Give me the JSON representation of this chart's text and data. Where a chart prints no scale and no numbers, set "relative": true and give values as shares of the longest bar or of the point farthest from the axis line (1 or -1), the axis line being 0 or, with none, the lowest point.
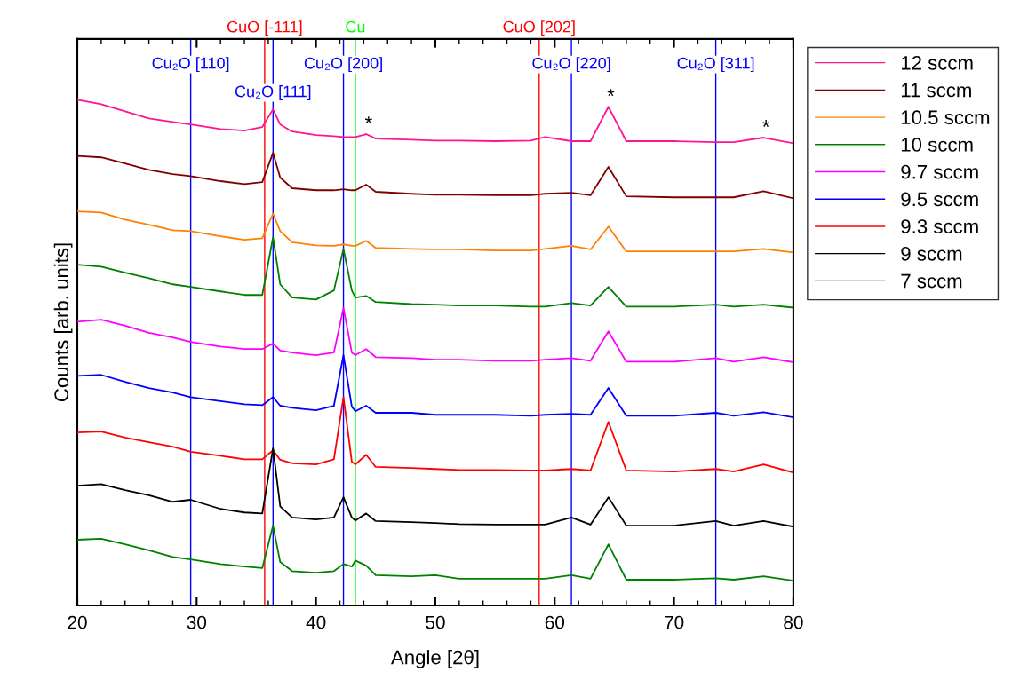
{
  "chart_data": {
    "type": "line",
    "relative": true,
    "xlabel": "Angle [2θ]",
    "ylabel": "Counts [arb. units]",
    "x": [
      20,
      22,
      24,
      26,
      28,
      29.5,
      32,
      34,
      35.5,
      36.4,
      37,
      38,
      40,
      41.5,
      42.3,
      43,
      43.3,
      44.2,
      45,
      48,
      50,
      52,
      55,
      58,
      59.2,
      61.4,
      63,
      64.5,
      66,
      70,
      73.5,
      75,
      77.5,
      80
    ],
    "xlim": [
      20,
      80
    ],
    "xticks": [
      20,
      30,
      40,
      50,
      60,
      70,
      80
    ],
    "grid": false,
    "legend": "right",
    "marker": "none",
    "line_style": "solid",
    "series": [
      {
        "name": "12 sccm",
        "color": "#ff1493",
        "values": [
          1.0,
          0.991,
          0.977,
          0.963,
          0.956,
          0.951,
          0.942,
          0.939,
          0.946,
          0.981,
          0.951,
          0.937,
          0.93,
          0.928,
          0.926,
          0.926,
          0.926,
          0.932,
          0.923,
          0.921,
          0.919,
          0.919,
          0.918,
          0.919,
          0.926,
          0.918,
          0.918,
          0.986,
          0.918,
          0.918,
          0.916,
          0.916,
          0.925,
          0.914
        ]
      },
      {
        "name": "11 sccm",
        "color": "#800000",
        "values": [
          0.889,
          0.886,
          0.874,
          0.861,
          0.853,
          0.849,
          0.839,
          0.833,
          0.837,
          0.895,
          0.846,
          0.825,
          0.821,
          0.821,
          0.823,
          0.821,
          0.821,
          0.832,
          0.818,
          0.814,
          0.812,
          0.812,
          0.811,
          0.811,
          0.814,
          0.816,
          0.811,
          0.867,
          0.809,
          0.807,
          0.807,
          0.807,
          0.819,
          0.805
        ]
      },
      {
        "name": "10.5 sccm",
        "color": "#ff8000",
        "values": [
          0.779,
          0.777,
          0.763,
          0.753,
          0.742,
          0.74,
          0.73,
          0.723,
          0.726,
          0.775,
          0.74,
          0.718,
          0.712,
          0.711,
          0.714,
          0.711,
          0.711,
          0.721,
          0.707,
          0.705,
          0.704,
          0.704,
          0.702,
          0.702,
          0.705,
          0.711,
          0.704,
          0.749,
          0.7,
          0.7,
          0.7,
          0.7,
          0.705,
          0.698
        ]
      },
      {
        "name": "10 sccm",
        "color": "#008000",
        "values": [
          0.674,
          0.67,
          0.658,
          0.647,
          0.635,
          0.63,
          0.621,
          0.614,
          0.614,
          0.728,
          0.635,
          0.609,
          0.605,
          0.623,
          0.705,
          0.623,
          0.609,
          0.612,
          0.6,
          0.596,
          0.595,
          0.593,
          0.593,
          0.591,
          0.591,
          0.598,
          0.593,
          0.63,
          0.591,
          0.591,
          0.595,
          0.591,
          0.595,
          0.589
        ]
      },
      {
        "name": "9.7 sccm",
        "color": "#ff00ff",
        "values": [
          0.561,
          0.565,
          0.553,
          0.539,
          0.53,
          0.521,
          0.512,
          0.507,
          0.507,
          0.518,
          0.504,
          0.5,
          0.495,
          0.5,
          0.588,
          0.5,
          0.495,
          0.507,
          0.491,
          0.489,
          0.486,
          0.486,
          0.484,
          0.484,
          0.486,
          0.489,
          0.484,
          0.542,
          0.482,
          0.482,
          0.489,
          0.482,
          0.491,
          0.481
        ]
      },
      {
        "name": "9.5 sccm",
        "color": "#0000ff",
        "values": [
          0.454,
          0.456,
          0.442,
          0.43,
          0.421,
          0.412,
          0.404,
          0.398,
          0.396,
          0.412,
          0.395,
          0.391,
          0.386,
          0.395,
          0.495,
          0.393,
          0.384,
          0.395,
          0.381,
          0.381,
          0.377,
          0.377,
          0.377,
          0.375,
          0.377,
          0.379,
          0.377,
          0.43,
          0.375,
          0.375,
          0.381,
          0.375,
          0.382,
          0.372
        ]
      },
      {
        "name": "9.3 sccm",
        "color": "#ff0000",
        "values": [
          0.342,
          0.344,
          0.332,
          0.323,
          0.314,
          0.304,
          0.296,
          0.289,
          0.289,
          0.307,
          0.288,
          0.281,
          0.279,
          0.289,
          0.412,
          0.284,
          0.279,
          0.298,
          0.274,
          0.272,
          0.27,
          0.268,
          0.268,
          0.267,
          0.267,
          0.27,
          0.267,
          0.363,
          0.267,
          0.265,
          0.27,
          0.265,
          0.279,
          0.263
        ]
      },
      {
        "name": "9 sccm",
        "color": "#000000",
        "values": [
          0.237,
          0.24,
          0.228,
          0.218,
          0.205,
          0.209,
          0.191,
          0.184,
          0.182,
          0.311,
          0.196,
          0.174,
          0.17,
          0.174,
          0.214,
          0.174,
          0.168,
          0.182,
          0.167,
          0.165,
          0.163,
          0.161,
          0.16,
          0.16,
          0.16,
          0.174,
          0.16,
          0.214,
          0.158,
          0.158,
          0.167,
          0.158,
          0.167,
          0.156
        ]
      },
      {
        "name": "7 sccm",
        "color": "#008000",
        "values": [
          0.13,
          0.132,
          0.121,
          0.109,
          0.096,
          0.091,
          0.082,
          0.077,
          0.074,
          0.158,
          0.086,
          0.068,
          0.065,
          0.068,
          0.082,
          0.077,
          0.089,
          0.079,
          0.06,
          0.058,
          0.06,
          0.053,
          0.053,
          0.053,
          0.053,
          0.06,
          0.053,
          0.121,
          0.051,
          0.051,
          0.054,
          0.051,
          0.058,
          0.049
        ]
      }
    ],
    "ref_lines": [
      {
        "axis": "x",
        "value": 29.5,
        "label": "Cu₂O [110]",
        "color": "#0000ff"
      },
      {
        "axis": "x",
        "value": 35.7,
        "label": "CuO [-111]",
        "color": "#ff0000"
      },
      {
        "axis": "x",
        "value": 36.4,
        "label": "Cu₂O [111]",
        "color": "#0000ff"
      },
      {
        "axis": "x",
        "value": 42.3,
        "label": "Cu₂O [200]",
        "color": "#0000ff"
      },
      {
        "axis": "x",
        "value": 43.3,
        "label": "Cu",
        "color": "#00ff00"
      },
      {
        "axis": "x",
        "value": 58.7,
        "label": "CuO [202]",
        "color": "#ff0000"
      },
      {
        "axis": "x",
        "value": 61.4,
        "label": "Cu₂O [220]",
        "color": "#0000ff"
      },
      {
        "axis": "x",
        "value": 73.5,
        "label": "Cu₂O [311]",
        "color": "#0000ff"
      }
    ],
    "annotations": [
      {
        "text": "*",
        "x": 44.2,
        "y": 0.932
      },
      {
        "text": "*",
        "x": 64.5,
        "y": 0.986
      },
      {
        "text": "*",
        "x": 77.5,
        "y": 0.925
      }
    ]
  }
}
